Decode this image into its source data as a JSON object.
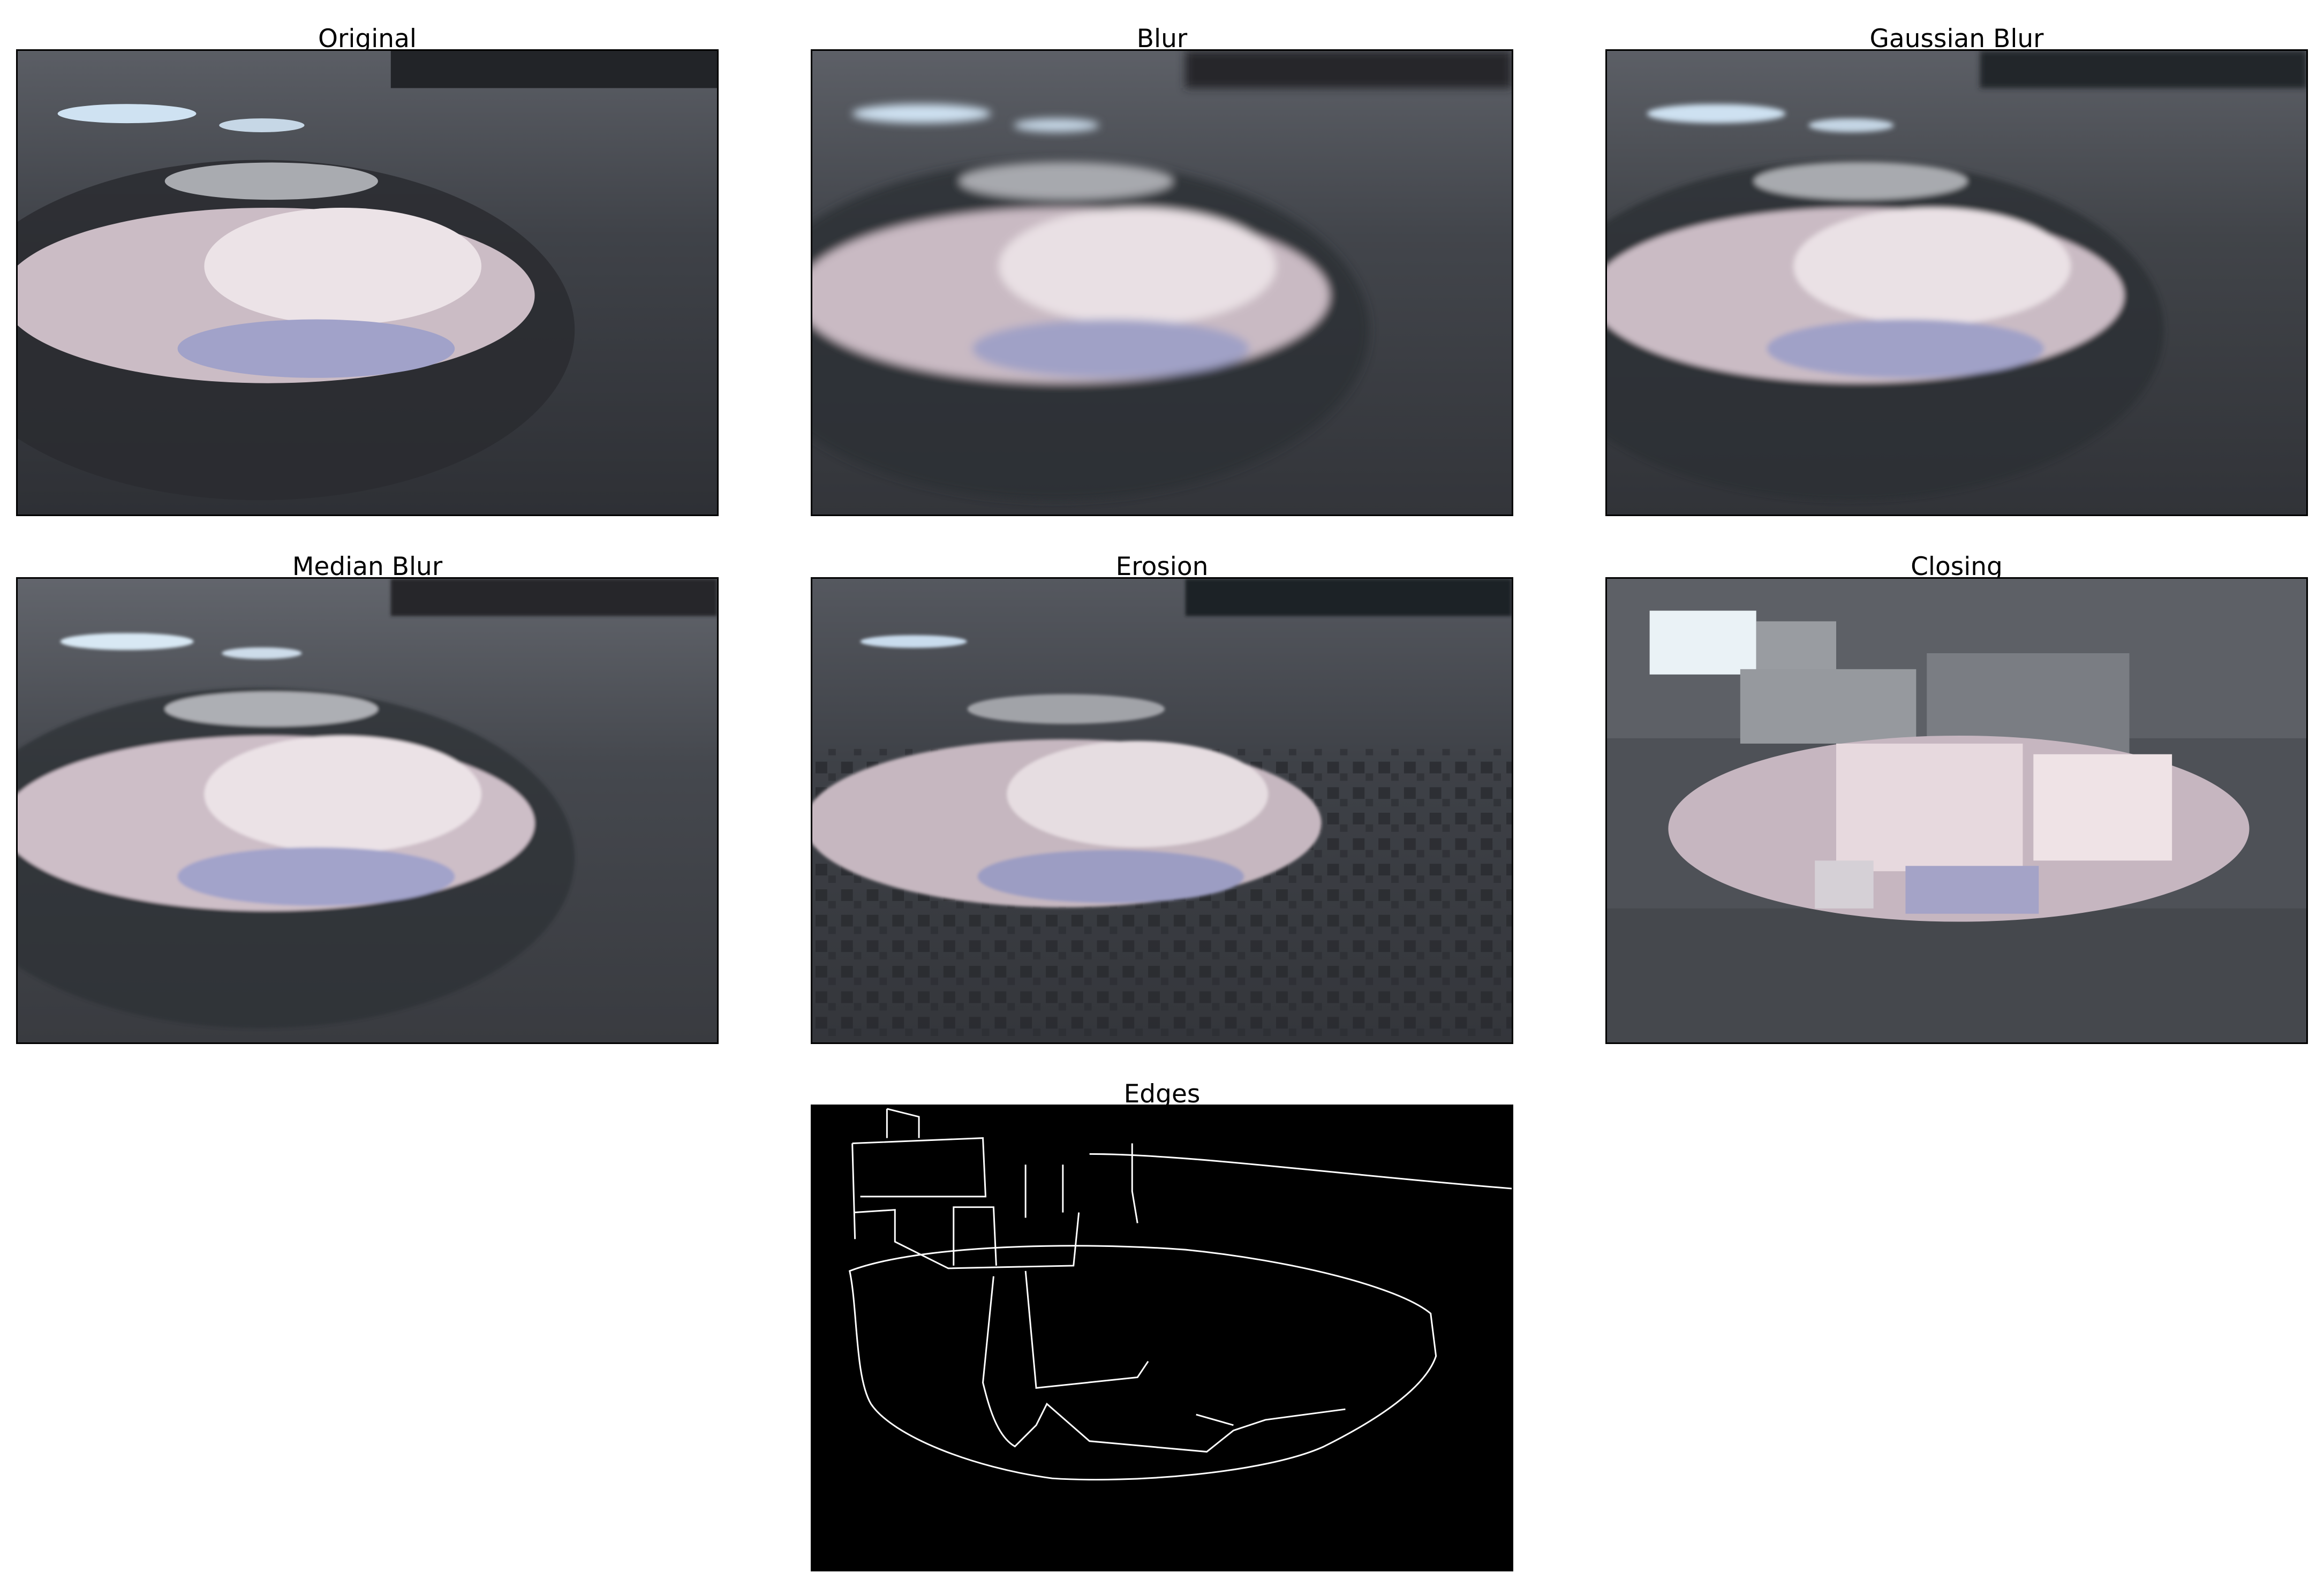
{
  "panels": [
    {
      "title": "Original"
    },
    {
      "title": "Blur"
    },
    {
      "title": "Gaussian Blur"
    },
    {
      "title": "Median Blur"
    },
    {
      "title": "Erosion"
    },
    {
      "title": "Closing"
    },
    {
      "title": "Edges"
    }
  ],
  "colors": {
    "ground": "#3b3e44",
    "ground_dark": "#24262b",
    "sky_reflection": "#cdbdc6",
    "cloud": "#ece2e6",
    "blue_sky": "#9fa0c8",
    "puddle_gray": "#a4a6ab",
    "edges_bg": "#000000",
    "edges_line": "#ffffff"
  }
}
